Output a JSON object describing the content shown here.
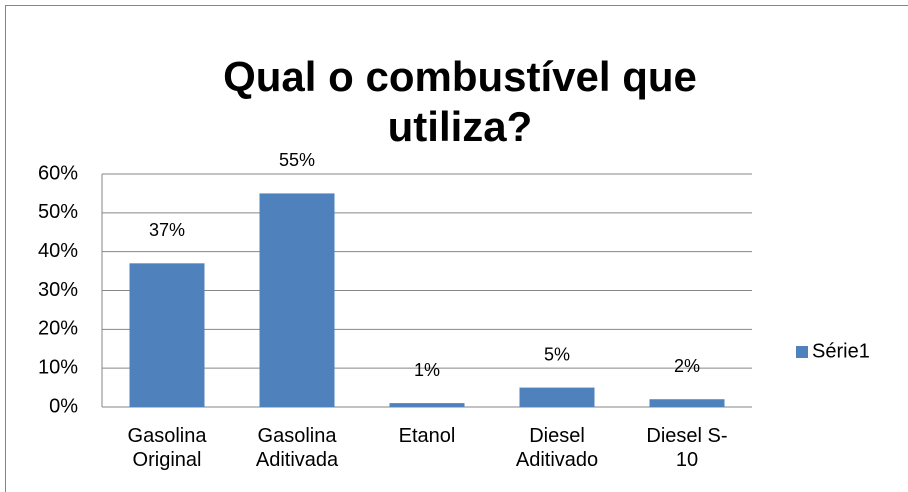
{
  "chart_data": {
    "type": "bar",
    "title": "Qual o combustível que utiliza?",
    "categories": [
      "Gasolina Original",
      "Gasolina Aditivada",
      "Etanol",
      "Diesel Aditivado",
      "Diesel S-10"
    ],
    "series": [
      {
        "name": "Série1",
        "color": "#4f81bd",
        "values": [
          37,
          55,
          1,
          5,
          2
        ],
        "value_labels": [
          "37%",
          "55%",
          "1%",
          "5%",
          "2%"
        ]
      }
    ],
    "ylim": [
      0,
      60
    ],
    "yticks": [
      {
        "value": 0,
        "label": "0%"
      },
      {
        "value": 10,
        "label": "10%"
      },
      {
        "value": 20,
        "label": "20%"
      },
      {
        "value": 30,
        "label": "30%"
      },
      {
        "value": 40,
        "label": "40%"
      },
      {
        "value": 50,
        "label": "50%"
      },
      {
        "value": 60,
        "label": "60%"
      }
    ],
    "grid": true,
    "legend": "right"
  }
}
